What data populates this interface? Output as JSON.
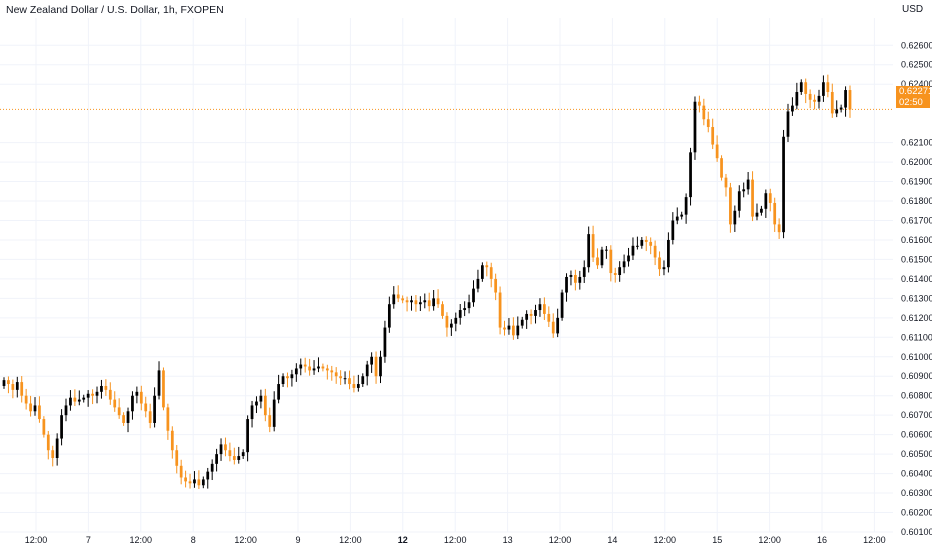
{
  "header": {
    "title": "New Zealand Dollar / U.S. Dollar, 1h, FXOPEN",
    "currency": "USD"
  },
  "price_label": {
    "price": "0.62271",
    "countdown": "02:50"
  },
  "colors": {
    "up": "#000000",
    "down": "#f7931e",
    "wick_up_accent": "#26a69a",
    "wick_down_accent": "#e91e63",
    "grid": "#f0f3fa",
    "last_price_line": "#f7931e"
  },
  "chart_data": {
    "type": "candlestick",
    "title": "New Zealand Dollar / U.S. Dollar, 1h, FXOPEN",
    "ylabel": "USD",
    "ylim": [
      0.601,
      0.6274
    ],
    "grid": true,
    "y_ticks": [
      "0.62600",
      "0.62500",
      "0.62400",
      "0.62100",
      "0.62000",
      "0.61900",
      "0.61800",
      "0.61700",
      "0.61600",
      "0.61500",
      "0.61400",
      "0.61300",
      "0.61200",
      "0.61100",
      "0.61000",
      "0.60900",
      "0.60800",
      "0.60700",
      "0.60600",
      "0.60500",
      "0.60400",
      "0.60300",
      "0.60200",
      "0.60100"
    ],
    "x_ticks": [
      {
        "label": "12:00",
        "bold": false
      },
      {
        "label": "7",
        "bold": false
      },
      {
        "label": "12:00",
        "bold": false
      },
      {
        "label": "8",
        "bold": false
      },
      {
        "label": "12:00",
        "bold": false
      },
      {
        "label": "9",
        "bold": false
      },
      {
        "label": "12:00",
        "bold": false
      },
      {
        "label": "12",
        "bold": true
      },
      {
        "label": "12:00",
        "bold": false
      },
      {
        "label": "13",
        "bold": false
      },
      {
        "label": "12:00",
        "bold": false
      },
      {
        "label": "14",
        "bold": false
      },
      {
        "label": "12:00",
        "bold": false
      },
      {
        "label": "15",
        "bold": false
      },
      {
        "label": "12:00",
        "bold": false
      },
      {
        "label": "16",
        "bold": false
      },
      {
        "label": "12:00",
        "bold": false
      }
    ],
    "last_price": 0.62271,
    "close_path": [
      0.6088,
      0.6086,
      0.6083,
      0.6087,
      0.608,
      0.6076,
      0.6072,
      0.6075,
      0.6068,
      0.606,
      0.6052,
      0.6048,
      0.6058,
      0.607,
      0.6075,
      0.6079,
      0.6077,
      0.6078,
      0.6079,
      0.6081,
      0.608,
      0.6082,
      0.6085,
      0.6083,
      0.6078,
      0.6074,
      0.607,
      0.6066,
      0.6072,
      0.608,
      0.6082,
      0.6076,
      0.6072,
      0.6066,
      0.608,
      0.6093,
      0.6074,
      0.6062,
      0.6052,
      0.6044,
      0.6038,
      0.6036,
      0.6035,
      0.6037,
      0.6034,
      0.6037,
      0.6041,
      0.6045,
      0.605,
      0.6055,
      0.6052,
      0.6049,
      0.6047,
      0.6049,
      0.6051,
      0.6068,
      0.6075,
      0.6077,
      0.608,
      0.607,
      0.6064,
      0.6078,
      0.6086,
      0.609,
      0.6089,
      0.6091,
      0.6094,
      0.6096,
      0.6095,
      0.6093,
      0.6094,
      0.6095,
      0.6094,
      0.6093,
      0.6092,
      0.609,
      0.6089,
      0.6089,
      0.6086,
      0.6084,
      0.6086,
      0.609,
      0.6096,
      0.61,
      0.609,
      0.61,
      0.6115,
      0.6127,
      0.6132,
      0.613,
      0.6129,
      0.6128,
      0.6129,
      0.6127,
      0.6128,
      0.6129,
      0.6126,
      0.613,
      0.6127,
      0.6121,
      0.6115,
      0.6117,
      0.612,
      0.6124,
      0.6125,
      0.6128,
      0.6135,
      0.614,
      0.6147,
      0.6146,
      0.614,
      0.6133,
      0.6115,
      0.6114,
      0.6116,
      0.6111,
      0.6116,
      0.6119,
      0.6122,
      0.6121,
      0.6124,
      0.6127,
      0.6122,
      0.6118,
      0.6112,
      0.612,
      0.6133,
      0.6141,
      0.6142,
      0.6138,
      0.6141,
      0.6146,
      0.6163,
      0.6151,
      0.6147,
      0.6155,
      0.6155,
      0.6143,
      0.6142,
      0.6146,
      0.6149,
      0.6152,
      0.6157,
      0.6157,
      0.616,
      0.6159,
      0.6157,
      0.6151,
      0.6145,
      0.6146,
      0.616,
      0.617,
      0.6172,
      0.6173,
      0.6182,
      0.6205,
      0.6231,
      0.6229,
      0.6222,
      0.6218,
      0.6209,
      0.6202,
      0.6192,
      0.6187,
      0.6168,
      0.6175,
      0.6185,
      0.6186,
      0.6191,
      0.6172,
      0.6174,
      0.6176,
      0.6184,
      0.6179,
      0.6168,
      0.6164,
      0.6213,
      0.6226,
      0.6229,
      0.6236,
      0.6241,
      0.6235,
      0.6232,
      0.6231,
      0.6234,
      0.6241,
      0.6236,
      0.6225,
      0.6227,
      0.6228,
      0.6237,
      0.6227
    ]
  }
}
